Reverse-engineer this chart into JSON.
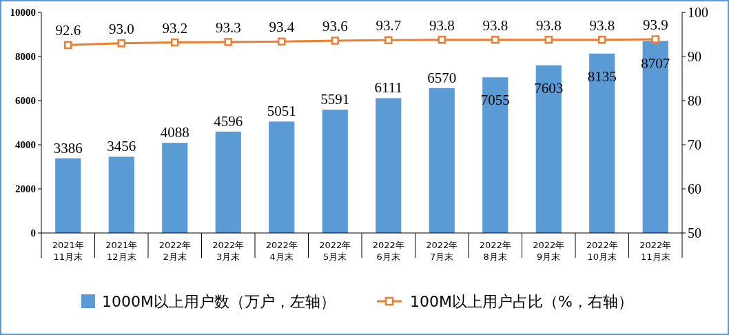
{
  "chart_data": {
    "type": "bar",
    "categories": [
      "2021年\n11月末",
      "2021年\n12月末",
      "2022年\n2月末",
      "2022年\n3月末",
      "2022年\n4月末",
      "2022年\n5月末",
      "2022年\n6月末",
      "2022年\n7月末",
      "2022年\n8月末",
      "2022年\n9月末",
      "2022年\n10月末",
      "2022年\n11月末"
    ],
    "series": [
      {
        "name": "1000M以上用户数（万户，左轴）",
        "color": "#5b9bd5",
        "values": [
          3386,
          3456,
          4088,
          4596,
          5051,
          5591,
          6111,
          6570,
          7055,
          7603,
          8135,
          8707
        ]
      },
      {
        "name": "100M以上用户占比（%，右轴）",
        "type": "line",
        "axis": "y2",
        "color": "#ed7d31",
        "marker": "square",
        "values": [
          92.6,
          93.0,
          93.2,
          93.3,
          93.4,
          93.6,
          93.7,
          93.8,
          93.8,
          93.8,
          93.8,
          93.9
        ],
        "value_labels": [
          "92.6",
          "93.0",
          "93.2",
          "93.3",
          "93.4",
          "93.6",
          "93.7",
          "93.8",
          "93.8",
          "93.8",
          "93.8",
          "93.9"
        ]
      }
    ],
    "data_labels": true,
    "ylim": [
      0,
      10000
    ],
    "yticks": [
      0,
      2000,
      4000,
      6000,
      8000,
      10000
    ],
    "y2lim": [
      50,
      100
    ],
    "y2ticks": [
      50,
      60,
      70,
      80,
      90,
      100
    ],
    "grid": false,
    "legend": "bottom"
  }
}
